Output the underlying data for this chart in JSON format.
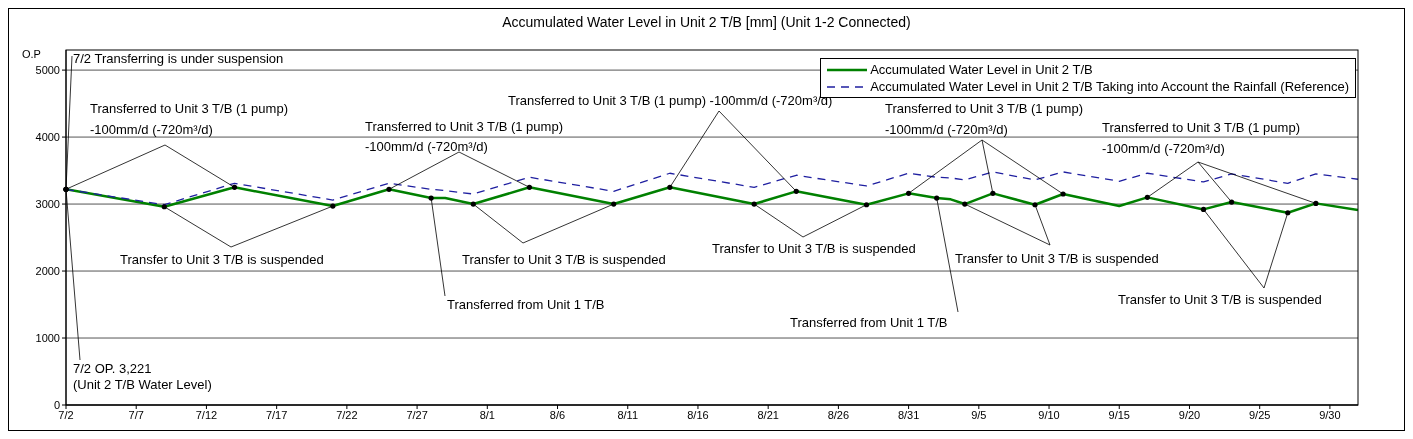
{
  "chart_data": {
    "type": "line",
    "title": "Accumulated Water Level in Unit 2 T/B [mm] (Unit 1-2 Connected)",
    "ylabel": "O.P",
    "x": [
      "--07-02",
      "--07-09",
      "--07-14",
      "--07-21",
      "--07-25",
      "--07-28",
      "--07-29",
      "--07-31",
      "--08-04",
      "--08-10",
      "--08-14",
      "--08-20",
      "--08-23",
      "--08-28",
      "--08-31",
      "--09-02",
      "--09-03",
      "--09-04",
      "--09-06",
      "--09-09",
      "--09-11",
      "--09-15",
      "--09-17",
      "--09-21",
      "--09-23",
      "--09-27",
      "--09-29",
      "--10-02"
    ],
    "series": [
      {
        "name": "Accumulated Water Level in Unit 2 T/B",
        "color": "#008000",
        "line_style": "solid",
        "values": [
          3220,
          2960,
          3250,
          2970,
          3220,
          3090,
          3090,
          3000,
          3250,
          3000,
          3250,
          3000,
          3190,
          2990,
          3160,
          3090,
          3070,
          3000,
          3160,
          2990,
          3150,
          2970,
          3100,
          2920,
          3030,
          2870,
          3010,
          2910
        ]
      },
      {
        "name": "Accumulated Water Level in Unit 2 T/B Taking into Account the Rainfall (Reference)",
        "color": "#1f1fa0",
        "line_style": "dashed",
        "values": [
          3220,
          2990,
          3310,
          3060,
          3310,
          3220,
          3200,
          3150,
          3400,
          3190,
          3460,
          3250,
          3430,
          3270,
          3460,
          3400,
          3390,
          3360,
          3480,
          3360,
          3480,
          3340,
          3460,
          3330,
          3450,
          3310,
          3450,
          3370
        ]
      }
    ],
    "xlim": [
      "--07-02",
      "--10-02"
    ],
    "xticks": [
      {
        "value": "--07-02",
        "label": "7/2"
      },
      {
        "value": "--07-07",
        "label": "7/7"
      },
      {
        "value": "--07-12",
        "label": "7/12"
      },
      {
        "value": "--07-17",
        "label": "7/17"
      },
      {
        "value": "--07-22",
        "label": "7/22"
      },
      {
        "value": "--07-27",
        "label": "7/27"
      },
      {
        "value": "--08-01",
        "label": "8/1"
      },
      {
        "value": "--08-06",
        "label": "8/6"
      },
      {
        "value": "--08-11",
        "label": "8/11"
      },
      {
        "value": "--08-16",
        "label": "8/16"
      },
      {
        "value": "--08-21",
        "label": "8/21"
      },
      {
        "value": "--08-26",
        "label": "8/26"
      },
      {
        "value": "--08-31",
        "label": "8/31"
      },
      {
        "value": "--09-05",
        "label": "9/5"
      },
      {
        "value": "--09-10",
        "label": "9/10"
      },
      {
        "value": "--09-15",
        "label": "9/15"
      },
      {
        "value": "--09-20",
        "label": "9/20"
      },
      {
        "value": "--09-25",
        "label": "9/25"
      },
      {
        "value": "--09-30",
        "label": "9/30"
      }
    ],
    "ylim": [
      0,
      5300
    ],
    "yticks": [
      0,
      1000,
      2000,
      3000,
      4000,
      5000
    ],
    "grid": "y",
    "legend": "top right",
    "marker": "none",
    "annotations": [
      {
        "text": "7/2 Transferring is under suspension",
        "x": "--07-02",
        "y": 3221
      },
      {
        "text": "Transferred to Unit 3 T/B (1 pump) -100mm/d (-720m³/d)",
        "x": "--07-02",
        "y": 3221
      },
      {
        "text": "Transfer to Unit 3 T/B is suspended",
        "x": "--07-09",
        "y": 2960
      },
      {
        "text": "7/2 OP. 3,221\n(Unit 2 T/B Water Level)",
        "x": "--07-02",
        "y": 3221
      },
      {
        "text": "Transferred to Unit 3 T/B (1 pump) -100mm/d (-720m³/d)",
        "x": "--07-25",
        "y": 3220
      },
      {
        "text": "Transfer to Unit 3 T/B is suspended",
        "x": "--07-31",
        "y": 3000
      },
      {
        "text": "Transferred from Unit 1 T/B",
        "x": "--07-28",
        "y": 3090
      },
      {
        "text": "Transferred to Unit 3 T/B (1 pump) -100mm/d (-720m³/d)",
        "x": "--08-14",
        "y": 3250
      },
      {
        "text": "Transfer to Unit 3 T/B is suspended",
        "x": "--08-20",
        "y": 3000
      },
      {
        "text": "Transferred from Unit 1 T/B",
        "x": "--09-02",
        "y": 3090
      },
      {
        "text": "Transferred to Unit 3 T/B (1 pump) -100mm/d (-720m³/d)",
        "x": "--08-31",
        "y": 3160
      },
      {
        "text": "Transfer to Unit 3 T/B is suspended",
        "x": "--09-04",
        "y": 3000
      },
      {
        "text": "Transferred to Unit 3 T/B (1 pump) -100mm/d (-720m³/d)",
        "x": "--09-17",
        "y": 3100
      },
      {
        "text": "Transfer to Unit 3 T/B is suspended",
        "x": "--09-21",
        "y": 2920
      }
    ]
  }
}
